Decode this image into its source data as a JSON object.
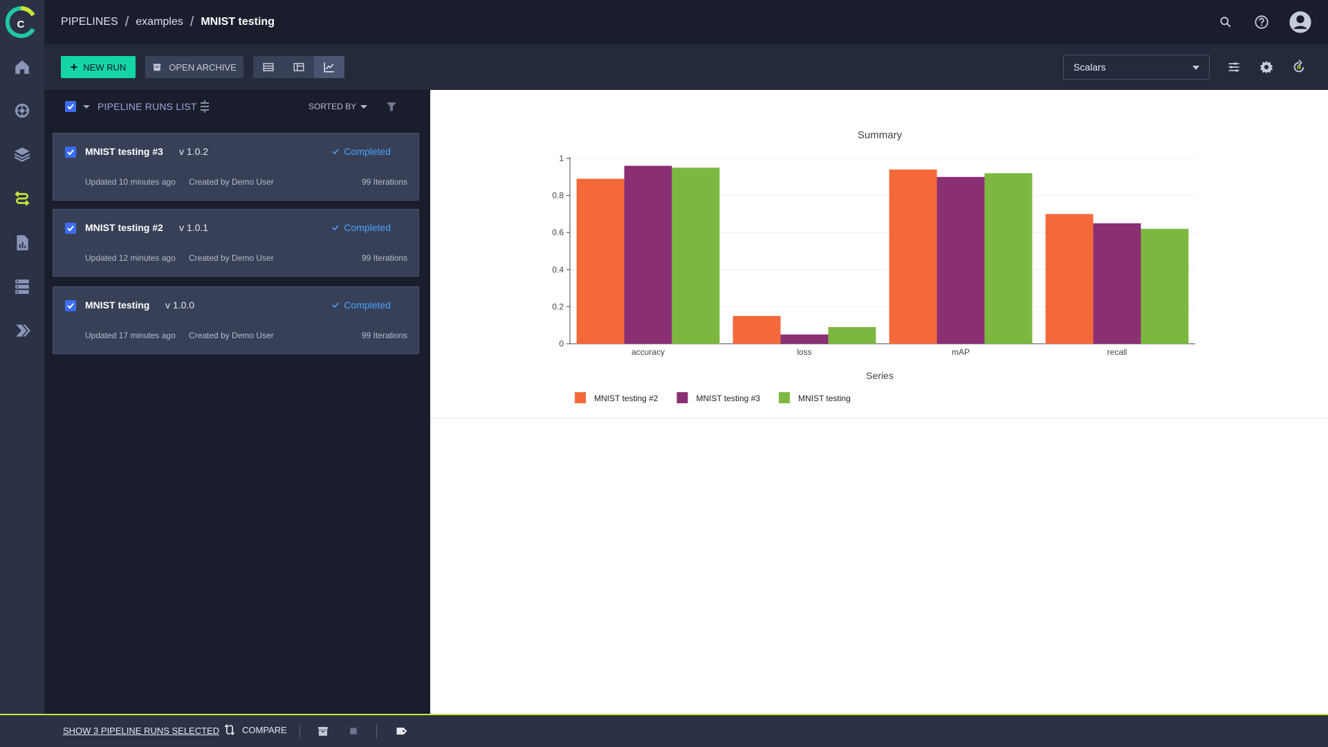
{
  "breadcrumb": {
    "root": "PIPELINES",
    "project": "examples",
    "current": "MNIST testing"
  },
  "toolbar": {
    "new_run_label": "NEW RUN",
    "open_archive_label": "OPEN ARCHIVE",
    "metric_select_value": "Scalars"
  },
  "list": {
    "title": "PIPELINE RUNS LIST",
    "sort_label": "SORTED BY",
    "runs": [
      {
        "name": "MNIST testing #3",
        "version": "v 1.0.2",
        "status": "Completed",
        "updated": "Updated 10 minutes ago",
        "created_by": "Created by Demo User",
        "iterations": "99 Iterations"
      },
      {
        "name": "MNIST testing #2",
        "version": "v 1.0.1",
        "status": "Completed",
        "updated": "Updated 12 minutes ago",
        "created_by": "Created by Demo User",
        "iterations": "99 Iterations"
      },
      {
        "name": "MNIST testing",
        "version": "v 1.0.0",
        "status": "Completed",
        "updated": "Updated 17 minutes ago",
        "created_by": "Created by Demo User",
        "iterations": "99 Iterations"
      }
    ]
  },
  "footer": {
    "show_selected_label": "SHOW 3 PIPELINE RUNS SELECTED",
    "compare_label": "COMPARE"
  },
  "colors": {
    "accent": "#14d5a8",
    "status_completed": "#4aa3ff",
    "active_nav": "#c8e63a"
  },
  "icons": {
    "rail": [
      "home-icon",
      "brain-icon",
      "layers-icon",
      "pipelines-icon",
      "reports-icon",
      "datasets-icon",
      "deploy-icon"
    ],
    "header": [
      "search-icon",
      "help-icon",
      "user-avatar-icon"
    ]
  },
  "chart_data": {
    "type": "bar",
    "title": "Summary",
    "xlabel": "Series",
    "ylabel": "",
    "categories": [
      "accuracy",
      "loss",
      "mAP",
      "recall"
    ],
    "ylim": [
      0,
      1
    ],
    "yticks": [
      0,
      0.2,
      0.4,
      0.6,
      0.8,
      1
    ],
    "ytick_labels": [
      "0",
      "0.2",
      "0.4",
      "0.6",
      "0.8",
      "1"
    ],
    "grid": true,
    "legend_position": "bottom-left",
    "series": [
      {
        "name": "MNIST testing #2",
        "color": "#f4693a",
        "values": [
          0.89,
          0.15,
          0.94,
          0.7
        ]
      },
      {
        "name": "MNIST testing #3",
        "color": "#8a2f73",
        "values": [
          0.96,
          0.05,
          0.9,
          0.65
        ]
      },
      {
        "name": "MNIST testing",
        "color": "#7cb83f",
        "values": [
          0.95,
          0.09,
          0.92,
          0.62
        ]
      }
    ]
  }
}
